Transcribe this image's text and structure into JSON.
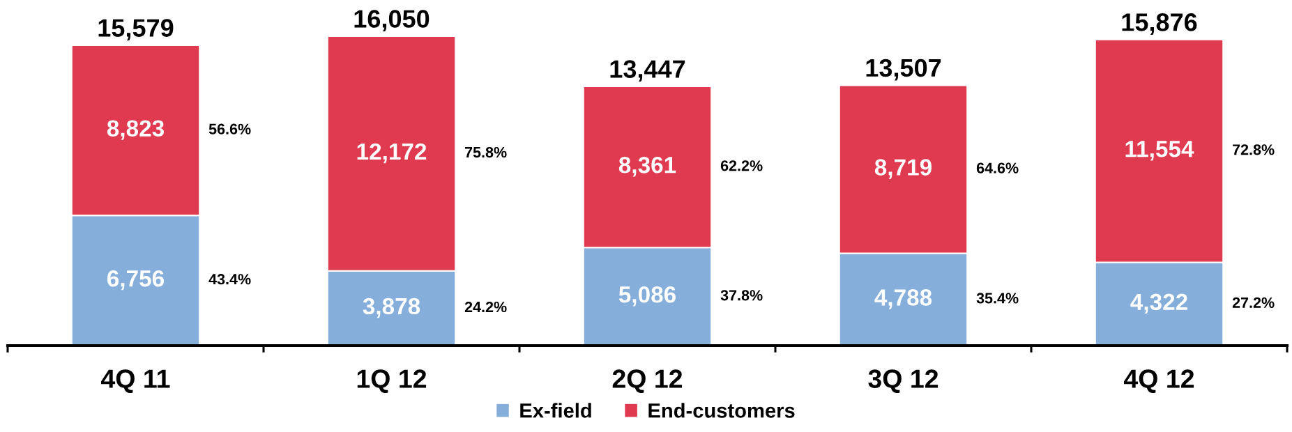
{
  "chart_data": {
    "type": "bar",
    "stacked": true,
    "categories": [
      "4Q 11",
      "1Q 12",
      "2Q 12",
      "3Q 12",
      "4Q 12"
    ],
    "series": [
      {
        "name": "Ex-field",
        "color": "#86aedb",
        "values": [
          6756,
          3878,
          5086,
          4788,
          4322
        ],
        "value_labels": [
          "6,756",
          "3,878",
          "5,086",
          "4,788",
          "4,322"
        ]
      },
      {
        "name": "End-customers",
        "color": "#e03a50",
        "values": [
          8823,
          12172,
          8361,
          8719,
          11554
        ],
        "value_labels": [
          "8,823",
          "12,172",
          "8,361",
          "8,719",
          "11,554"
        ]
      }
    ],
    "totals": [
      "15,579",
      "16,050",
      "13,447",
      "13,507",
      "15,876"
    ],
    "legend": "bottom",
    "tick_labels": "x",
    "annotations": [
      "43.4%",
      "56.6%",
      "24.2%",
      "75.8%",
      "37.8%",
      "62.2%",
      "35.4%",
      "64.6%",
      "27.2%",
      "72.8%"
    ]
  }
}
